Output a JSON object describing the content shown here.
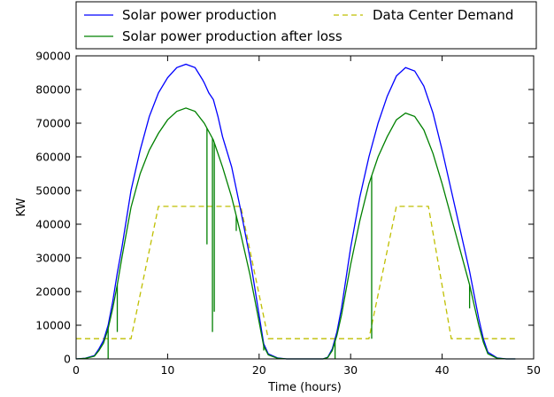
{
  "chart_data": {
    "type": "line",
    "xlabel": "Time (hours)",
    "ylabel": "KW",
    "xlim": [
      0,
      50
    ],
    "ylim": [
      0,
      90000
    ],
    "x_ticks": [
      0,
      10,
      20,
      30,
      40,
      50
    ],
    "y_ticks": [
      0,
      10000,
      20000,
      30000,
      40000,
      50000,
      60000,
      70000,
      80000,
      90000
    ],
    "grid": false,
    "legend_position": "top, outside plot area",
    "series": [
      {
        "name": "Solar power production",
        "color": "#0000ff",
        "style": "solid",
        "points": [
          [
            0,
            0
          ],
          [
            1,
            200
          ],
          [
            2,
            1000
          ],
          [
            2.5,
            3000
          ],
          [
            3,
            5500
          ],
          [
            3.5,
            10000
          ],
          [
            4,
            17000
          ],
          [
            4.5,
            25500
          ],
          [
            5,
            33000
          ],
          [
            6,
            50000
          ],
          [
            7,
            62000
          ],
          [
            8,
            72000
          ],
          [
            9,
            79000
          ],
          [
            10,
            83500
          ],
          [
            11,
            86500
          ],
          [
            12,
            87500
          ],
          [
            13,
            86500
          ],
          [
            13.8,
            83000
          ],
          [
            14,
            82000
          ],
          [
            14.5,
            79000
          ],
          [
            15,
            77000
          ],
          [
            15.5,
            72000
          ],
          [
            16,
            66000
          ],
          [
            17,
            57000
          ],
          [
            18,
            44000
          ],
          [
            19,
            30000
          ],
          [
            20,
            13000
          ],
          [
            20.5,
            4500
          ],
          [
            21,
            1500
          ],
          [
            22,
            300
          ],
          [
            23,
            0
          ],
          [
            27,
            0
          ],
          [
            27.5,
            500
          ],
          [
            28,
            3000
          ],
          [
            28.5,
            8000
          ],
          [
            29,
            15000
          ],
          [
            30,
            33000
          ],
          [
            31,
            48000
          ],
          [
            32,
            60000
          ],
          [
            33,
            70000
          ],
          [
            34,
            78000
          ],
          [
            35,
            84000
          ],
          [
            36,
            86500
          ],
          [
            37,
            85500
          ],
          [
            38,
            81000
          ],
          [
            39,
            73000
          ],
          [
            40,
            62000
          ],
          [
            41,
            50000
          ],
          [
            42,
            38000
          ],
          [
            43,
            26000
          ],
          [
            44,
            12000
          ],
          [
            44.5,
            6000
          ],
          [
            45,
            2000
          ],
          [
            46,
            300
          ],
          [
            47,
            0
          ],
          [
            48,
            0
          ]
        ]
      },
      {
        "name": "Solar power production after loss",
        "color": "#008000",
        "style": "solid",
        "points": [
          [
            0,
            0
          ],
          [
            1,
            150
          ],
          [
            2,
            800
          ],
          [
            2.5,
            2500
          ],
          [
            3,
            4700
          ],
          [
            3.5,
            9000
          ],
          [
            4,
            15000
          ],
          [
            4.5,
            22000
          ],
          [
            5,
            30000
          ],
          [
            6,
            45000
          ],
          [
            7,
            55000
          ],
          [
            8,
            62000
          ],
          [
            9,
            67000
          ],
          [
            10,
            71000
          ],
          [
            11,
            73500
          ],
          [
            12,
            74500
          ],
          [
            13,
            73500
          ],
          [
            14,
            70000
          ],
          [
            15,
            65000
          ],
          [
            16,
            57000
          ],
          [
            17,
            48000
          ],
          [
            18,
            37000
          ],
          [
            19,
            25000
          ],
          [
            20,
            11000
          ],
          [
            20.5,
            3800
          ],
          [
            21,
            1200
          ],
          [
            22,
            200
          ],
          [
            23,
            0
          ],
          [
            27,
            0
          ],
          [
            27.5,
            400
          ],
          [
            28,
            2500
          ],
          [
            28.5,
            7000
          ],
          [
            29,
            13000
          ],
          [
            30,
            28000
          ],
          [
            31,
            41000
          ],
          [
            32,
            52000
          ],
          [
            33,
            60000
          ],
          [
            34,
            66000
          ],
          [
            35,
            71000
          ],
          [
            36,
            73000
          ],
          [
            37,
            72000
          ],
          [
            38,
            68000
          ],
          [
            39,
            61000
          ],
          [
            40,
            52000
          ],
          [
            41,
            42000
          ],
          [
            42,
            32000
          ],
          [
            43,
            22000
          ],
          [
            44,
            10000
          ],
          [
            44.5,
            5000
          ],
          [
            45,
            1500
          ],
          [
            46,
            200
          ],
          [
            47,
            0
          ],
          [
            48,
            0
          ]
        ],
        "drops": [
          [
            3.5,
            0
          ],
          [
            4.5,
            8000
          ],
          [
            14.3,
            34000
          ],
          [
            14.9,
            8000
          ],
          [
            15.1,
            14000
          ],
          [
            17.5,
            38000
          ],
          [
            20.5,
            2500
          ],
          [
            28.3,
            0
          ],
          [
            32.3,
            6000
          ],
          [
            43,
            15000
          ]
        ]
      },
      {
        "name": "Data Center Demand",
        "color": "#bfbf00",
        "style": "dashed",
        "points": [
          [
            0,
            6000
          ],
          [
            6,
            6000
          ],
          [
            9,
            45300
          ],
          [
            18,
            45300
          ],
          [
            21,
            6000
          ],
          [
            32,
            6000
          ],
          [
            35,
            45300
          ],
          [
            38.5,
            45300
          ],
          [
            41,
            6000
          ],
          [
            48,
            6000
          ]
        ]
      }
    ]
  }
}
